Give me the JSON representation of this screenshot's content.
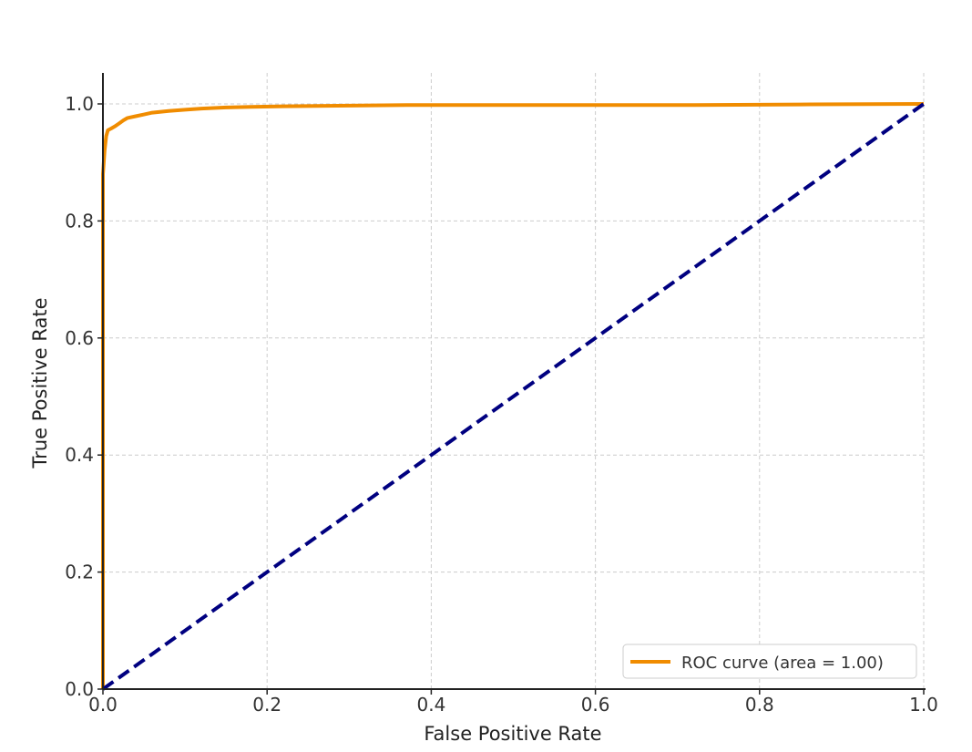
{
  "chart_data": {
    "type": "line",
    "title": "",
    "xlabel": "False Positive Rate",
    "ylabel": "True Positive Rate",
    "xlim": [
      0,
      1
    ],
    "ylim": [
      0,
      1.0
    ],
    "x_ticks": [
      "0.0",
      "0.2",
      "0.4",
      "0.6",
      "0.8",
      "1.0"
    ],
    "y_ticks": [
      "0.0",
      "0.2",
      "0.4",
      "0.6",
      "0.8",
      "1.0"
    ],
    "grid": true,
    "legend_position": "lower-right",
    "series": [
      {
        "name": "ROC curve (area = 1.00)",
        "color": "#f08c00",
        "style": "solid",
        "x": [
          0.0,
          0.0,
          0.002,
          0.004,
          0.006,
          0.01,
          0.015,
          0.02,
          0.025,
          0.03,
          0.04,
          0.05,
          0.06,
          0.08,
          0.1,
          0.12,
          0.15,
          0.18,
          0.22,
          0.3,
          0.37,
          0.5,
          0.7,
          0.85,
          1.0
        ],
        "y": [
          0.0,
          0.88,
          0.92,
          0.945,
          0.955,
          0.958,
          0.962,
          0.967,
          0.972,
          0.976,
          0.979,
          0.982,
          0.985,
          0.988,
          0.99,
          0.992,
          0.994,
          0.995,
          0.996,
          0.997,
          0.998,
          0.998,
          0.998,
          0.999,
          1.0
        ]
      },
      {
        "name": "",
        "color": "#000080",
        "style": "dashed",
        "x": [
          0.0,
          1.0
        ],
        "y": [
          0.0,
          1.0
        ]
      }
    ]
  }
}
